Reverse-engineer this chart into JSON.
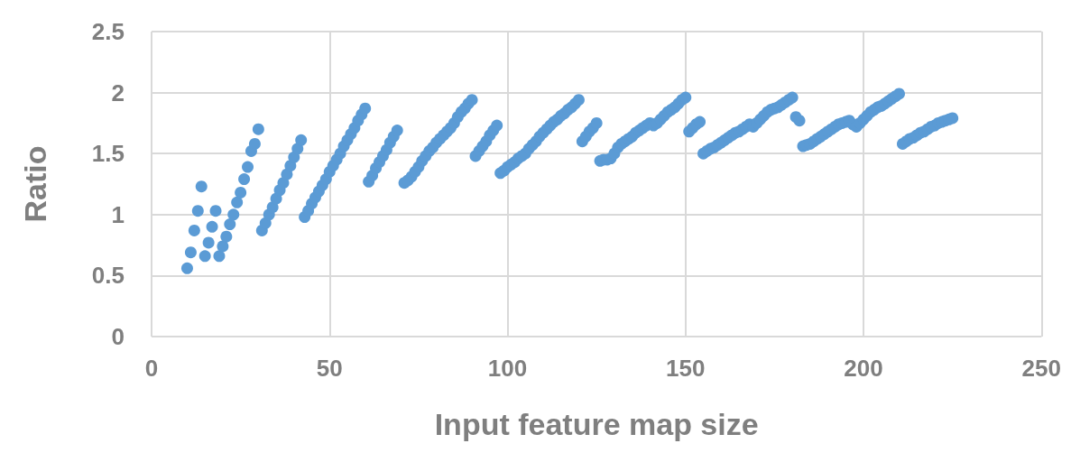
{
  "chart_data": {
    "type": "scatter",
    "xlabel": "Input feature map size",
    "ylabel": "Ratio",
    "color": "#5b9bd5",
    "marker": "circle",
    "grid": true,
    "xlim": [
      0,
      250
    ],
    "xticks": [
      0,
      50,
      100,
      150,
      200,
      250
    ],
    "ylim": [
      0,
      2.5
    ],
    "yticks": [
      0,
      0.5,
      1,
      1.5,
      2,
      2.5
    ],
    "x": [
      10,
      11,
      12,
      13,
      14,
      15,
      16,
      17,
      18,
      19,
      20,
      21,
      22,
      23,
      24,
      25,
      26,
      27,
      28,
      29,
      30,
      31,
      32,
      33,
      34,
      35,
      36,
      37,
      38,
      39,
      40,
      41,
      42,
      43,
      44,
      45,
      46,
      47,
      48,
      49,
      50,
      51,
      52,
      53,
      54,
      55,
      56,
      57,
      58,
      59,
      60,
      61,
      62,
      63,
      64,
      65,
      66,
      67,
      68,
      69,
      71,
      72,
      73,
      74,
      75,
      76,
      77,
      78,
      79,
      80,
      81,
      82,
      83,
      84,
      85,
      86,
      87,
      88,
      89,
      90,
      91,
      92,
      93,
      94,
      95,
      96,
      97,
      98,
      99,
      100,
      101,
      102,
      103,
      104,
      105,
      106,
      107,
      108,
      109,
      110,
      111,
      112,
      113,
      114,
      115,
      116,
      117,
      118,
      119,
      120,
      121,
      122,
      123,
      124,
      125,
      126,
      127,
      128,
      129,
      130,
      131,
      132,
      133,
      134,
      135,
      136,
      137,
      138,
      139,
      140,
      141,
      142,
      143,
      144,
      145,
      146,
      147,
      148,
      149,
      150,
      151,
      152,
      153,
      154,
      155,
      156,
      157,
      158,
      159,
      160,
      161,
      162,
      163,
      164,
      165,
      166,
      167,
      168,
      169,
      170,
      171,
      172,
      173,
      174,
      175,
      176,
      177,
      178,
      179,
      180,
      181,
      182,
      183,
      184,
      185,
      186,
      187,
      188,
      189,
      190,
      191,
      192,
      193,
      194,
      195,
      196,
      197,
      198,
      199,
      200,
      201,
      202,
      203,
      204,
      205,
      206,
      207,
      208,
      209,
      210,
      211,
      212,
      213,
      214,
      215,
      216,
      217,
      218,
      219,
      220,
      221,
      222,
      223,
      224,
      225
    ],
    "values": [
      0.56,
      0.69,
      0.87,
      1.03,
      1.23,
      0.66,
      0.77,
      0.9,
      1.03,
      0.66,
      0.74,
      0.82,
      0.92,
      1.0,
      1.1,
      1.18,
      1.29,
      1.39,
      1.52,
      1.58,
      1.7,
      0.87,
      0.93,
      1.0,
      1.06,
      1.13,
      1.2,
      1.26,
      1.33,
      1.4,
      1.47,
      1.54,
      1.61,
      0.98,
      1.03,
      1.09,
      1.14,
      1.19,
      1.24,
      1.29,
      1.35,
      1.4,
      1.45,
      1.5,
      1.56,
      1.61,
      1.66,
      1.71,
      1.77,
      1.82,
      1.87,
      1.27,
      1.32,
      1.38,
      1.43,
      1.48,
      1.53,
      1.59,
      1.64,
      1.69,
      1.26,
      1.28,
      1.31,
      1.35,
      1.39,
      1.44,
      1.48,
      1.52,
      1.55,
      1.59,
      1.62,
      1.65,
      1.68,
      1.71,
      1.75,
      1.8,
      1.84,
      1.87,
      1.91,
      1.94,
      1.48,
      1.52,
      1.56,
      1.6,
      1.65,
      1.69,
      1.73,
      1.34,
      1.36,
      1.39,
      1.41,
      1.43,
      1.46,
      1.48,
      1.5,
      1.54,
      1.57,
      1.6,
      1.64,
      1.67,
      1.7,
      1.73,
      1.76,
      1.78,
      1.81,
      1.83,
      1.86,
      1.88,
      1.91,
      1.94,
      1.6,
      1.64,
      1.68,
      1.71,
      1.75,
      1.44,
      1.45,
      1.45,
      1.46,
      1.5,
      1.55,
      1.58,
      1.6,
      1.62,
      1.64,
      1.67,
      1.69,
      1.71,
      1.73,
      1.75,
      1.73,
      1.75,
      1.78,
      1.81,
      1.84,
      1.86,
      1.88,
      1.91,
      1.94,
      1.96,
      1.68,
      1.71,
      1.74,
      1.76,
      1.5,
      1.52,
      1.54,
      1.55,
      1.57,
      1.59,
      1.61,
      1.63,
      1.65,
      1.67,
      1.68,
      1.7,
      1.72,
      1.74,
      1.72,
      1.75,
      1.78,
      1.81,
      1.84,
      1.86,
      1.87,
      1.88,
      1.9,
      1.92,
      1.94,
      1.96,
      1.8,
      1.77,
      1.56,
      1.57,
      1.58,
      1.6,
      1.62,
      1.64,
      1.66,
      1.68,
      1.7,
      1.72,
      1.74,
      1.75,
      1.76,
      1.77,
      1.74,
      1.72,
      1.75,
      1.78,
      1.81,
      1.84,
      1.86,
      1.88,
      1.89,
      1.91,
      1.93,
      1.95,
      1.97,
      1.99,
      1.58,
      1.6,
      1.62,
      1.63,
      1.65,
      1.67,
      1.68,
      1.7,
      1.72,
      1.73,
      1.75,
      1.76,
      1.77,
      1.78,
      1.79
    ]
  }
}
